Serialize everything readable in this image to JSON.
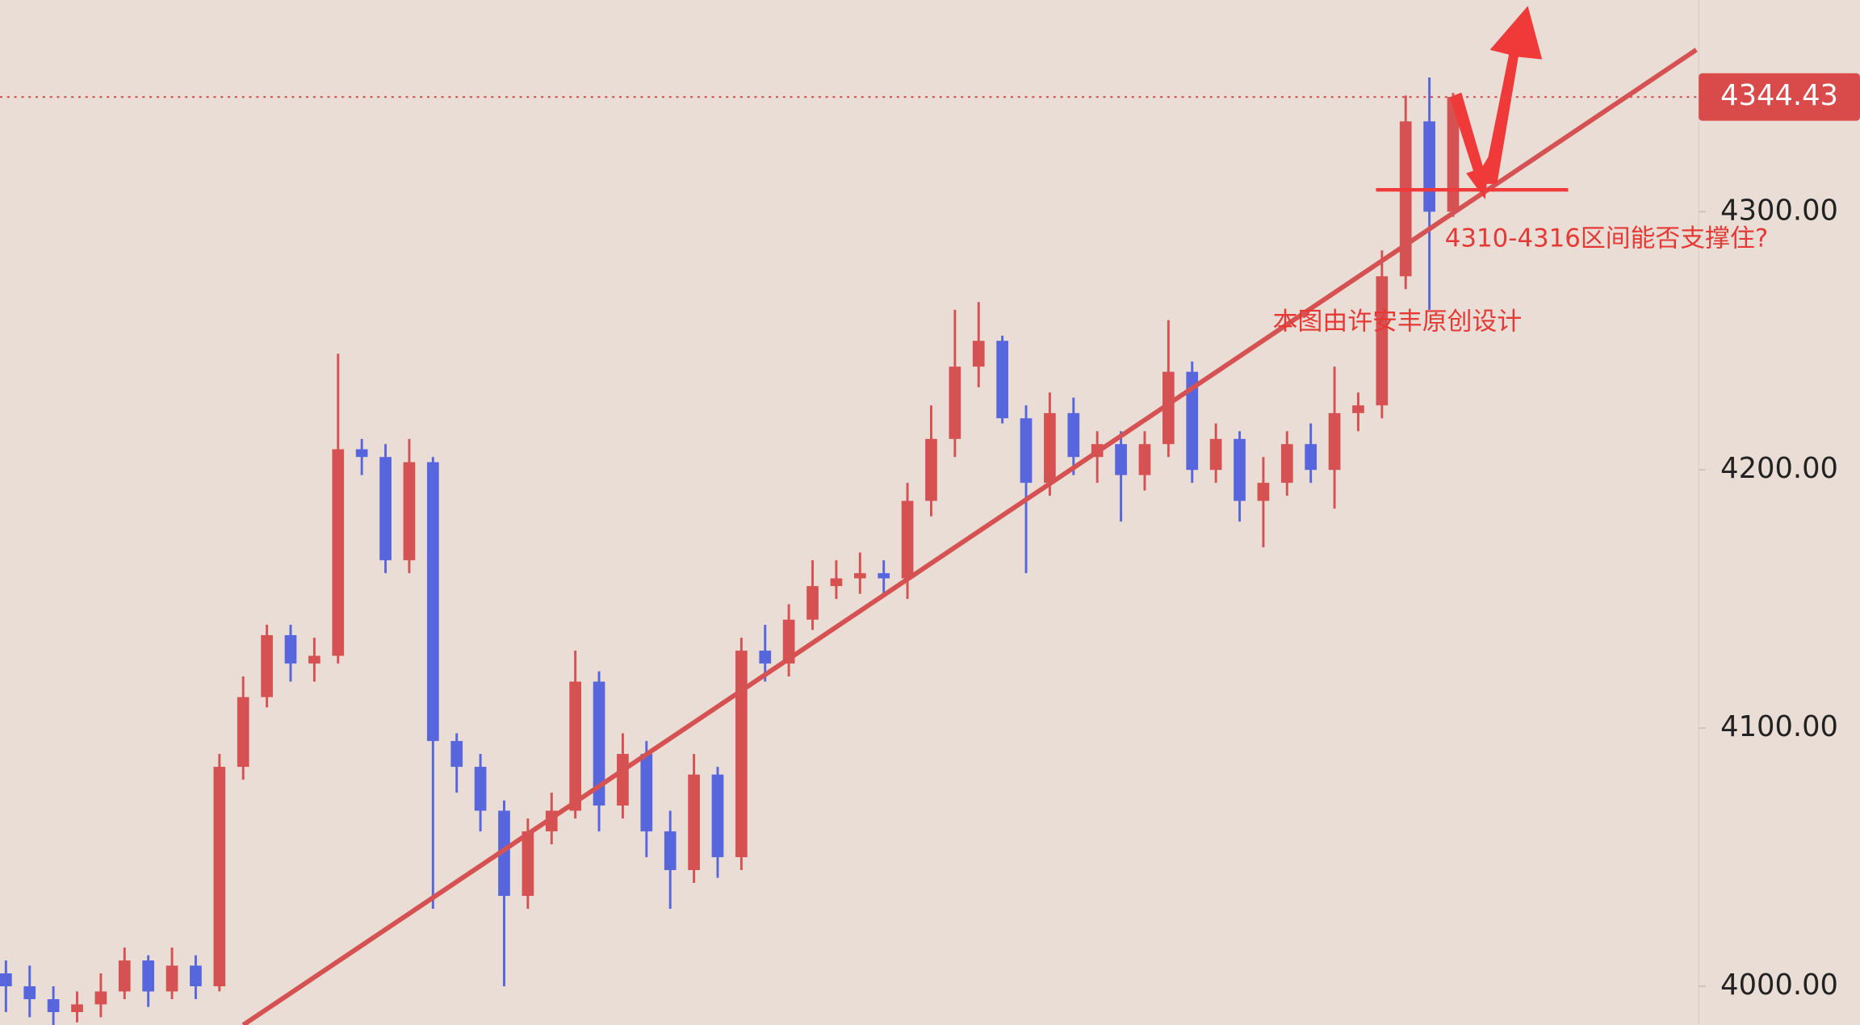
{
  "chart_data": {
    "type": "candlestick",
    "up_color": "#d65252",
    "down_color": "#5766dd",
    "ylim": [
      3985,
      4382
    ],
    "yticks": [
      {
        "value": 4000,
        "label": "4000.00"
      },
      {
        "value": 4100,
        "label": "4100.00"
      },
      {
        "value": 4200,
        "label": "4200.00"
      },
      {
        "value": 4300,
        "label": "4300.00"
      }
    ],
    "last_price": 4344.43,
    "last_price_color": "#d94b4b",
    "annotations": [
      "4310-4316区间能否支撑住?",
      "本图由许安丰原创设计"
    ],
    "open": [
      4005,
      4000,
      3995,
      3990,
      3993,
      3998,
      4010,
      3998,
      4008,
      4000,
      4085,
      4112,
      4136,
      4125,
      4128,
      4208,
      4205,
      4165,
      4203,
      4095,
      4085,
      4068,
      4035,
      4060,
      4068,
      4118,
      4070,
      4090,
      4060,
      4045,
      4082,
      4050,
      4130,
      4125,
      4142,
      4155,
      4158,
      4160,
      4158,
      4188,
      4212,
      4240,
      4250,
      4220,
      4195,
      4222,
      4205,
      4210,
      4198,
      4210,
      4238,
      4200,
      4212,
      4188,
      4195,
      4210,
      4200,
      4222,
      4225,
      4275,
      4335,
      4300
    ],
    "high": [
      4010,
      4008,
      4000,
      3998,
      4005,
      4015,
      4012,
      4015,
      4012,
      4090,
      4120,
      4140,
      4140,
      4135,
      4245,
      4212,
      4210,
      4212,
      4205,
      4098,
      4090,
      4072,
      4065,
      4075,
      4130,
      4122,
      4098,
      4095,
      4068,
      4090,
      4085,
      4135,
      4140,
      4148,
      4165,
      4165,
      4168,
      4165,
      4195,
      4225,
      4262,
      4265,
      4252,
      4225,
      4230,
      4228,
      4215,
      4215,
      4215,
      4258,
      4242,
      4218,
      4215,
      4205,
      4215,
      4218,
      4240,
      4230,
      4285,
      4345,
      4352,
      4346
    ],
    "low": [
      3990,
      3988,
      3985,
      3986,
      3988,
      3995,
      3992,
      3995,
      3995,
      3998,
      4080,
      4108,
      4118,
      4118,
      4125,
      4198,
      4160,
      4160,
      4030,
      4075,
      4060,
      4000,
      4030,
      4055,
      4065,
      4060,
      4065,
      4050,
      4030,
      4040,
      4042,
      4045,
      4118,
      4120,
      4138,
      4150,
      4152,
      4152,
      4150,
      4182,
      4205,
      4232,
      4218,
      4160,
      4190,
      4198,
      4195,
      4180,
      4192,
      4205,
      4195,
      4195,
      4180,
      4170,
      4190,
      4195,
      4185,
      4215,
      4220,
      4270,
      4262,
      4298
    ],
    "close": [
      4000,
      3995,
      3990,
      3993,
      3998,
      4010,
      3998,
      4008,
      4000,
      4085,
      4112,
      4136,
      4125,
      4128,
      4208,
      4205,
      4165,
      4203,
      4095,
      4085,
      4068,
      4035,
      4060,
      4068,
      4118,
      4070,
      4090,
      4060,
      4045,
      4082,
      4050,
      4130,
      4125,
      4142,
      4155,
      4158,
      4160,
      4158,
      4188,
      4212,
      4240,
      4250,
      4220,
      4195,
      4222,
      4205,
      4210,
      4198,
      4210,
      4238,
      4200,
      4212,
      4188,
      4195,
      4210,
      4200,
      4222,
      4225,
      4275,
      4335,
      4300,
      4344.43
    ]
  }
}
